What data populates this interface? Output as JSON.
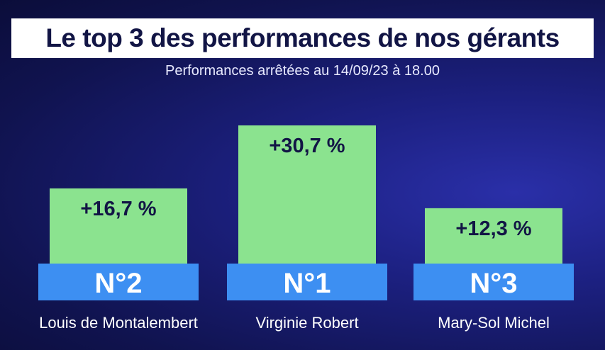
{
  "header": {
    "title": "Le top 3 des performances de nos gérants",
    "subtitle": "Performances arrêtées au 14/09/23 à 18.00"
  },
  "colors": {
    "bar_fill": "#8be38f",
    "rank_badge": "#3d8ff2",
    "rank_text": "#ffffff",
    "value_text": "#121545",
    "name_text": "#ffffff"
  },
  "chart_data": {
    "type": "bar",
    "title": "Le top 3 des performances de nos gérants",
    "subtitle": "Performances arrêtées au 14/09/23 à 18.00",
    "xlabel": "",
    "ylabel": "",
    "unit": "%",
    "grid": false,
    "legend": "none",
    "ylim": [
      0,
      30.7
    ],
    "categories": [
      "Louis de Montalembert",
      "Virginie Robert",
      "Mary-Sol Michel"
    ],
    "ranks": [
      "N°2",
      "N°1",
      "N°3"
    ],
    "values": [
      16.7,
      30.7,
      12.3
    ],
    "value_labels": [
      "+16,7 %",
      "+30,7 %",
      "+12,3 %"
    ]
  }
}
